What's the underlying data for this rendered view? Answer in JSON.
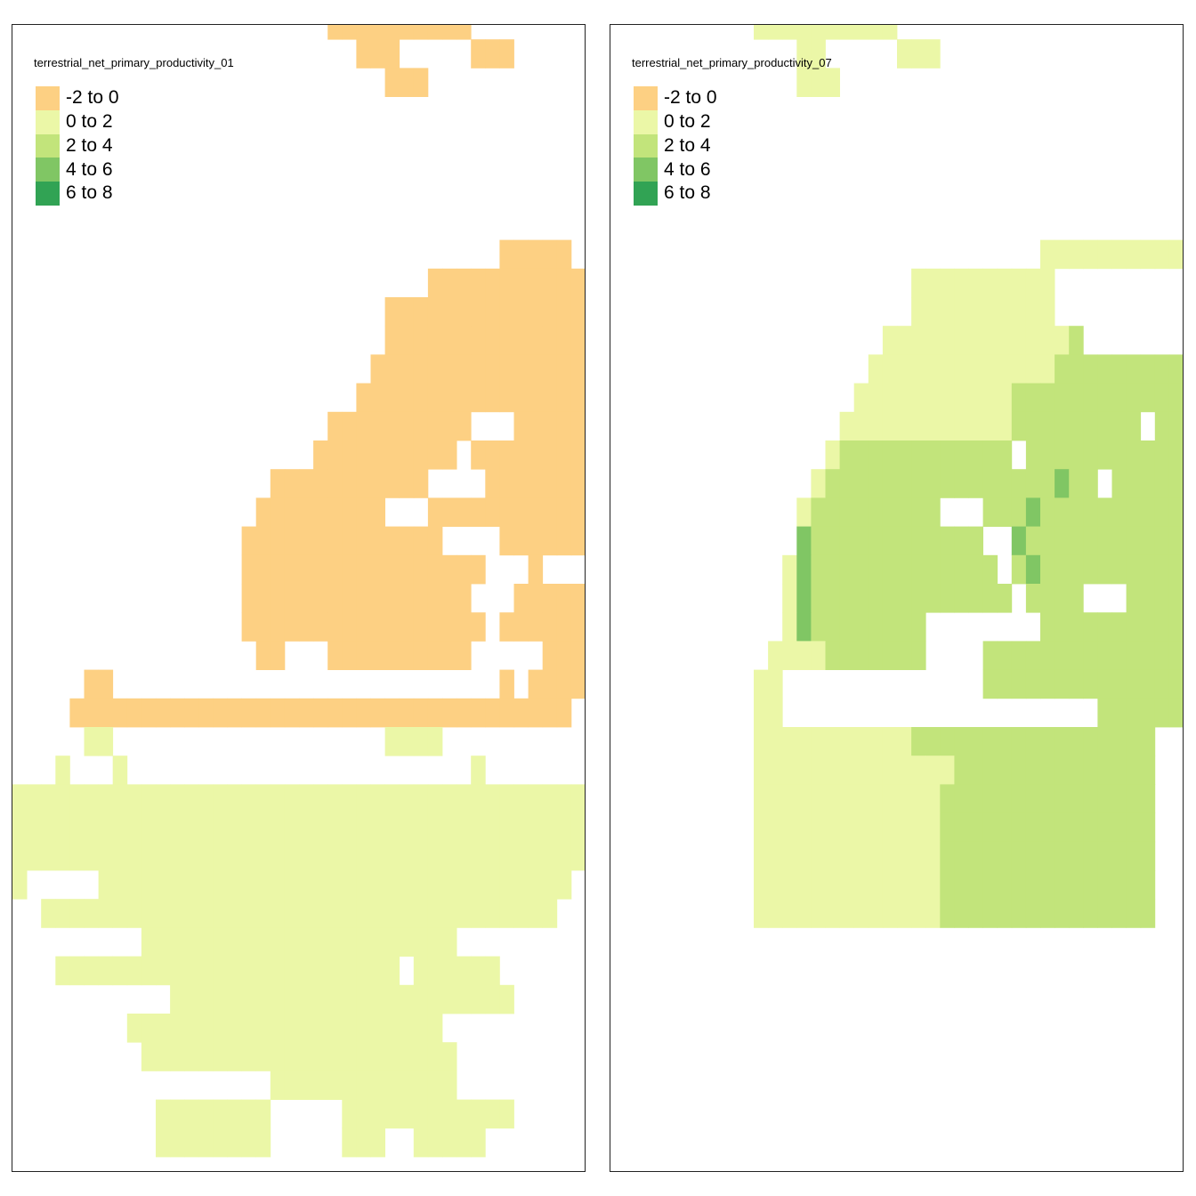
{
  "maps": [
    {
      "id": "left",
      "title": "terrestrial_net_primary_productivity_01",
      "palette": {
        "0": "#FDD083",
        "1": "#EBF7A7",
        "2": "#C2E47B",
        "3": "#80C664",
        "4": "#31A354"
      },
      "rows": [
        "0000000000000000000000000000000000000000",
        "0000000000000000000000000000000000000000",
        "0000000000000000000000000000000000000000",
        "0000000000000000000000000000000000000000",
        "0000000000000000000000000000000000000000",
        "0000000000000000000000000000000000000000",
        "0000000000000000000000000000000000000000",
        "0000000000000000000000000000000000000000",
        "0000000000000000000000000000000000000000",
        "0000000000000000000000000000000000000000",
        "0000000000000000000000000000000000000000",
        "0000000000000000000000000000000000000000",
        "0000000000000000000000000000000000000000",
        "0000000000000000000000000000000000000000",
        "0000000000000000000000000000000000000000",
        "0000000000000000000000000000000000000000",
        "0000000000000000000000000000000000000000",
        "0000000000000000000000000000000000000000",
        "0000000000000000000000000000000000000000",
        "0000000000000000000000000000000000000000",
        "0000000000000000000000000000000000000000",
        "0000000000000000000000000000000000000000",
        "0000000000000000000000000000000000000000",
        "0000000000000000000000000000000000000000",
        "0000000000000000000000000000000000000000",
        "1111111111111111111111111111111111111111",
        "1111111111111111111111111111111111111111",
        "1111111111111111111111111111111111111111",
        "1111111111111111111111111111111111111111",
        "1111111111111111111111111111111111111111",
        "1111111111111111111111111111111111111111",
        "1111111111111111111111111111111111111111",
        "1111111111111111111111111111111111111111",
        "1111111111111111111111111111111111111111",
        "1111111111111111111111111111111111111111",
        "1111111111111111111111111111111111111111",
        "1111111111111111111111111111111111111111",
        "1111111111111111111111111111111111111111",
        "1111111111111111111111111111111111111111",
        "1111111111111111111111111111111111111111"
      ],
      "mask": [
        "......................##########........",
        "........................###.....###.....",
        "..........................###...........",
        "........................................",
        "........................................",
        "........................................",
        "........................................",
        "........................................",
        "..................................#####.",
        ".............................###########",
        "..........................##############",
        "..........................##############",
        ".........................###############",
        "........................################",
        "......................##########...#####",
        ".....................##########.########",
        "..................###########....#######",
        ".................#########...###########",
        "................##############....######",
        "................#################...#...",
        "................################...#####",
        "................#################.######",
        ".................##...##########.....###",
        ".....##...........................#.####",
        "....###################################.",
        ".....##...................####..........",
        "...#...#........................#.......",
        "########################################",
        "########################################",
        "########################################",
        "#.....#################################.",
        "..####################################..",
        ".........######################.........",
        "...########################.######......",
        "...........########################.....",
        "........######################..........",
        ".........######################.........",
        "..................#############.........",
        "..........########.....############.....",
        "..........########.....###..#####.......",
        ".........#####........##....#####.......",
        "........................................"
      ]
    },
    {
      "id": "right",
      "title": "terrestrial_net_primary_productivity_07",
      "palette": {
        "0": "#FDD083",
        "1": "#EBF7A7",
        "2": "#C2E47B",
        "3": "#80C664",
        "4": "#31A354"
      },
      "rows": [
        "1111111111111111111111111111111111111111",
        "1111111111111111111111111111111111111111",
        "1111111111111111111111111111111111111111",
        "1111111111111111111111111111111111111111",
        "1111111111111111111111111111111111111111",
        "1111111111111111111111111111111111111111",
        "1111111111111111111111111111111111111111",
        "1111111111111111111111111111111111111111",
        "1111111111111111111111111111111111111111",
        "1111111111111111111111111111111111111111",
        "1111111111111111111111111111111111111111",
        "1111111111111111111111111111111122222222",
        "1111111111111111111111111111111222222222",
        "1111111111111111111111111111222222222222",
        "1111111111111111111111111111222222222222",
        "1111111111111111222222222222222222222222",
        "1111111111111112222222222222222322222222",
        "1111111111111122222222222222232222222222",
        "1111111111111322222222222223322222222222",
        "1111111111111322222222222222232222222222",
        "1111111111111322222222222222222222222222",
        "1111111111111322222222222222222222222222",
        "1111111111111112222222222222222222222222",
        "1111111111111111122222222222222222222222",
        "1111111111111111111112222222222222222222",
        "1111111111111111111112222222222222222222",
        "1111111111111111111111112222222222222222",
        "1111111111111111111111122222222222222222",
        "1111111111111111111111122222222222222222",
        "1111111111111111111111122222222222222222",
        "1111111111111111111111122222222222222222",
        "1111111111111111111111122222222222222222",
        "1111111111111111111111122222222222222222",
        "1111111111111111111111122222222222222222",
        "1111111111111111111111122222222222222222",
        "1111111111111111111111122222222222222222",
        "1111111111111111111111122222222222222222",
        "1111111111111111111111122222222222222222",
        "1111111111111111111111122222222222222222",
        "1111111111111111111111122222222222222222"
      ],
      "mask": [
        "..........##########....................",
        ".............##.....###.................",
        ".............###........................",
        "........................................",
        "........................................",
        "........................................",
        "........................................",
        "........................................",
        "..............................##########",
        ".....................##########.........",
        ".....................##########.........",
        "...................##############.......",
        "..................#######################",
        ".................########################",
        "................#####################.####",
        "...............#############.############",
        "..............####################.######",
        ".............##########...###############",
        ".............#############..#############",
        "............###############.#############",
        "............################.####...#####",
        "............##########........###########",
        "...........###########....###############",
        "..........##..............###############",
        "..........##......................#######",
        "..........############################.",
        "..........############################.",
        "..........############################.",
        "..........############################.",
        "..........############################.",
        "..........############################.",
        "..........############################.",
        "........................................",
        "........................................",
        "........................................",
        "........................................",
        "........................................",
        "........................................",
        "........................................",
        "........................................",
        "........................................"
      ]
    }
  ],
  "legend": {
    "entries": [
      {
        "label": "-2 to 0",
        "color": "#FDD083"
      },
      {
        "label": "0 to 2",
        "color": "#EBF7A7"
      },
      {
        "label": "2 to 4",
        "color": "#C2E47B"
      },
      {
        "label": "4 to 6",
        "color": "#80C664"
      },
      {
        "label": "6 to 8",
        "color": "#31A354"
      }
    ]
  }
}
